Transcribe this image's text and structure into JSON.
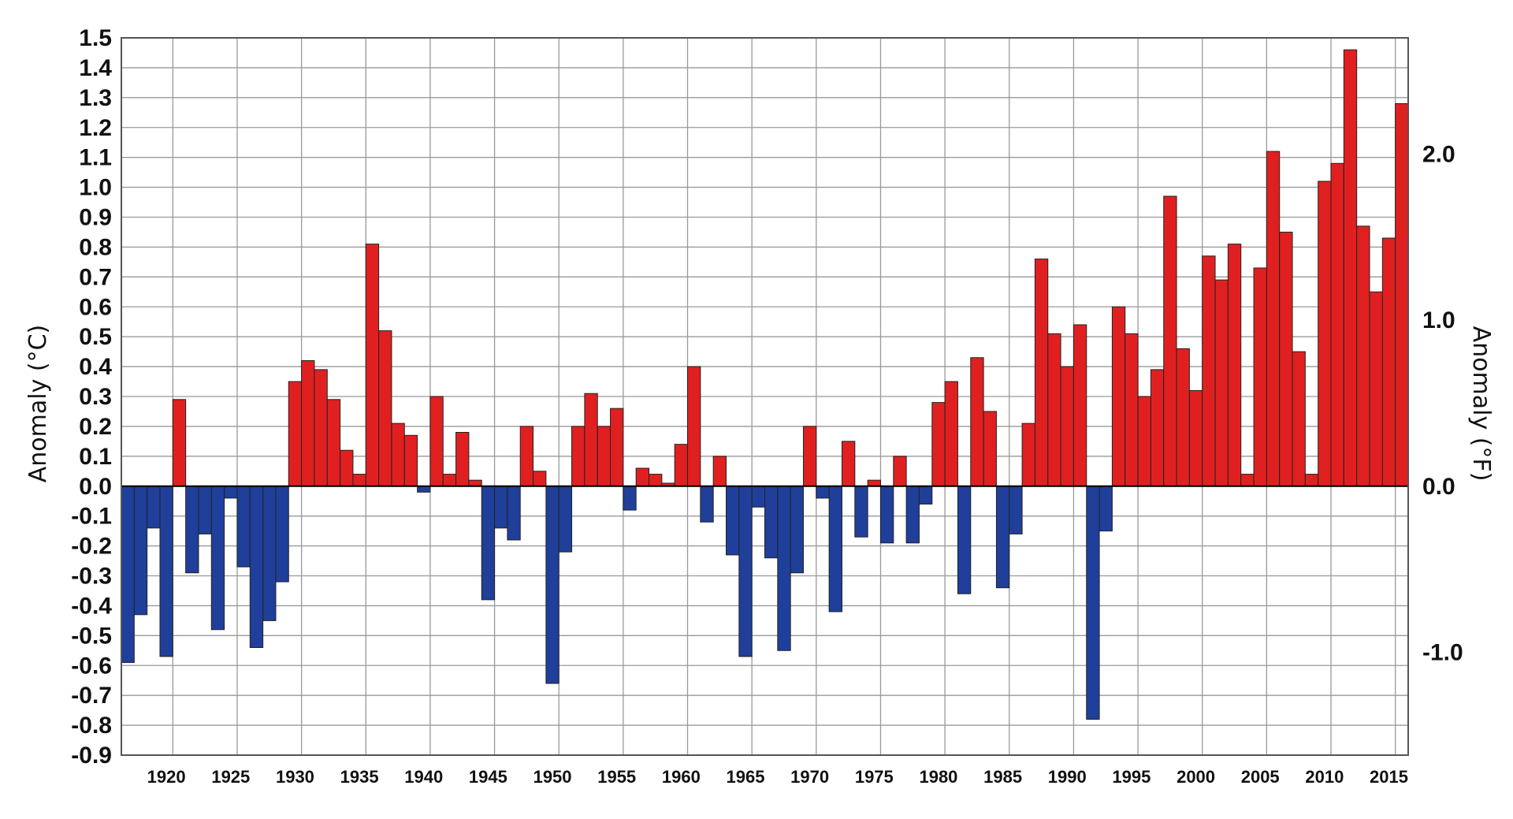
{
  "chart_data": {
    "type": "bar",
    "x": [
      1917,
      1918,
      1919,
      1920,
      1921,
      1922,
      1923,
      1924,
      1925,
      1926,
      1927,
      1928,
      1929,
      1930,
      1931,
      1932,
      1933,
      1934,
      1935,
      1936,
      1937,
      1938,
      1939,
      1940,
      1941,
      1942,
      1943,
      1944,
      1945,
      1946,
      1947,
      1948,
      1949,
      1950,
      1951,
      1952,
      1953,
      1954,
      1955,
      1956,
      1957,
      1958,
      1959,
      1960,
      1961,
      1962,
      1963,
      1964,
      1965,
      1966,
      1967,
      1968,
      1969,
      1970,
      1971,
      1972,
      1973,
      1974,
      1975,
      1976,
      1977,
      1978,
      1979,
      1980,
      1981,
      1982,
      1983,
      1984,
      1985,
      1986,
      1987,
      1988,
      1989,
      1990,
      1991,
      1992,
      1993,
      1994,
      1995,
      1996,
      1997,
      1998,
      1999,
      2000,
      2001,
      2002,
      2003,
      2004,
      2005,
      2006,
      2007,
      2008,
      2009,
      2010,
      2011,
      2012,
      2013,
      2014,
      2015,
      2016
    ],
    "values": [
      -0.59,
      -0.43,
      -0.14,
      -0.57,
      0.29,
      -0.29,
      -0.16,
      -0.48,
      -0.04,
      -0.27,
      -0.54,
      -0.45,
      -0.32,
      0.35,
      0.42,
      0.39,
      0.29,
      0.12,
      0.04,
      0.81,
      0.52,
      0.21,
      0.17,
      -0.02,
      0.3,
      0.04,
      0.18,
      0.02,
      -0.38,
      -0.14,
      -0.18,
      0.2,
      0.05,
      -0.66,
      -0.22,
      0.2,
      0.31,
      0.2,
      0.26,
      -0.08,
      0.06,
      0.04,
      0.01,
      0.14,
      0.4,
      -0.12,
      0.1,
      -0.23,
      -0.57,
      -0.07,
      -0.24,
      -0.55,
      -0.29,
      0.2,
      -0.04,
      -0.42,
      0.15,
      -0.17,
      0.02,
      -0.19,
      0.1,
      -0.19,
      -0.06,
      0.28,
      0.35,
      -0.36,
      0.43,
      0.25,
      -0.34,
      -0.16,
      0.21,
      0.76,
      0.51,
      0.4,
      0.54,
      -0.78,
      -0.15,
      0.6,
      0.51,
      0.3,
      0.39,
      0.97,
      0.46,
      0.32,
      0.77,
      0.69,
      0.81,
      0.04,
      0.73,
      1.12,
      0.85,
      0.45,
      0.04,
      1.02,
      1.08,
      1.46,
      0.87,
      0.65,
      0.83,
      1.28
    ],
    "xticks": [
      "1920",
      "1925",
      "1930",
      "1935",
      "1940",
      "1945",
      "1950",
      "1955",
      "1960",
      "1965",
      "1970",
      "1975",
      "1980",
      "1985",
      "1990",
      "1995",
      "2000",
      "2005",
      "2010",
      "2015"
    ],
    "yticks_left": [
      "1.5",
      "1.4",
      "1.3",
      "1.2",
      "1.1",
      "1.0",
      "0.9",
      "0.8",
      "0.7",
      "0.6",
      "0.5",
      "0.4",
      "0.3",
      "0.2",
      "0.1",
      "0.0",
      "-0.1",
      "-0.2",
      "-0.3",
      "-0.4",
      "-0.5",
      "-0.6",
      "-0.7",
      "-0.8",
      "-0.9"
    ],
    "yticks_right": [
      {
        "label": "2.0",
        "celsius": 1.111
      },
      {
        "label": "1.0",
        "celsius": 0.556
      },
      {
        "label": "0.0",
        "celsius": 0.0
      },
      {
        "label": "-1.0",
        "celsius": -0.556
      }
    ],
    "ylabel": "Anomaly (°C)",
    "ylabel_right": "Anomaly (°F)",
    "ylim": [
      -0.9,
      1.5
    ],
    "xlim": [
      1916.5,
      2016.5
    ],
    "grid": true,
    "colors": {
      "positive": "#e02020",
      "negative": "#1f3f9a",
      "grid": "#999999",
      "frame": "#555555",
      "zero_line": "#000000"
    }
  }
}
